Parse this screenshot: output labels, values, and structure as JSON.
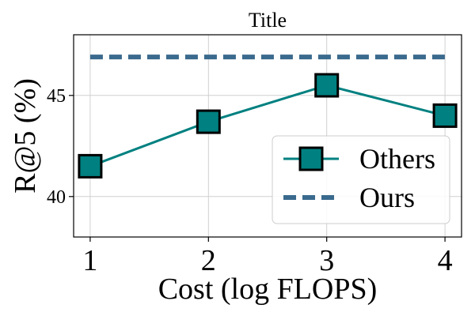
{
  "chart_data": {
    "type": "line",
    "title": "Title",
    "xlabel": "Cost (log FLOPS)",
    "ylabel": "R@5 (%)",
    "xlim": [
      0.86,
      4.14
    ],
    "ylim": [
      38.0,
      48.0
    ],
    "x_ticks": [
      1,
      2,
      3,
      4
    ],
    "x_tick_labels": [
      "1",
      "2",
      "3",
      "4"
    ],
    "y_ticks": [
      40,
      45
    ],
    "y_tick_labels": [
      "40",
      "45"
    ],
    "grid": true,
    "legend_position": "lower-right",
    "series": [
      {
        "name": "Others",
        "style": "solid line with square markers",
        "color": "#008080",
        "marker_edge_color": "#000000",
        "x": [
          1,
          2,
          3,
          4
        ],
        "y": [
          41.5,
          43.7,
          45.5,
          44.0
        ]
      },
      {
        "name": "Ours",
        "style": "dashed line",
        "color": "#3a6a8d",
        "x": [
          1,
          4
        ],
        "y": [
          46.9,
          46.9
        ]
      }
    ]
  }
}
